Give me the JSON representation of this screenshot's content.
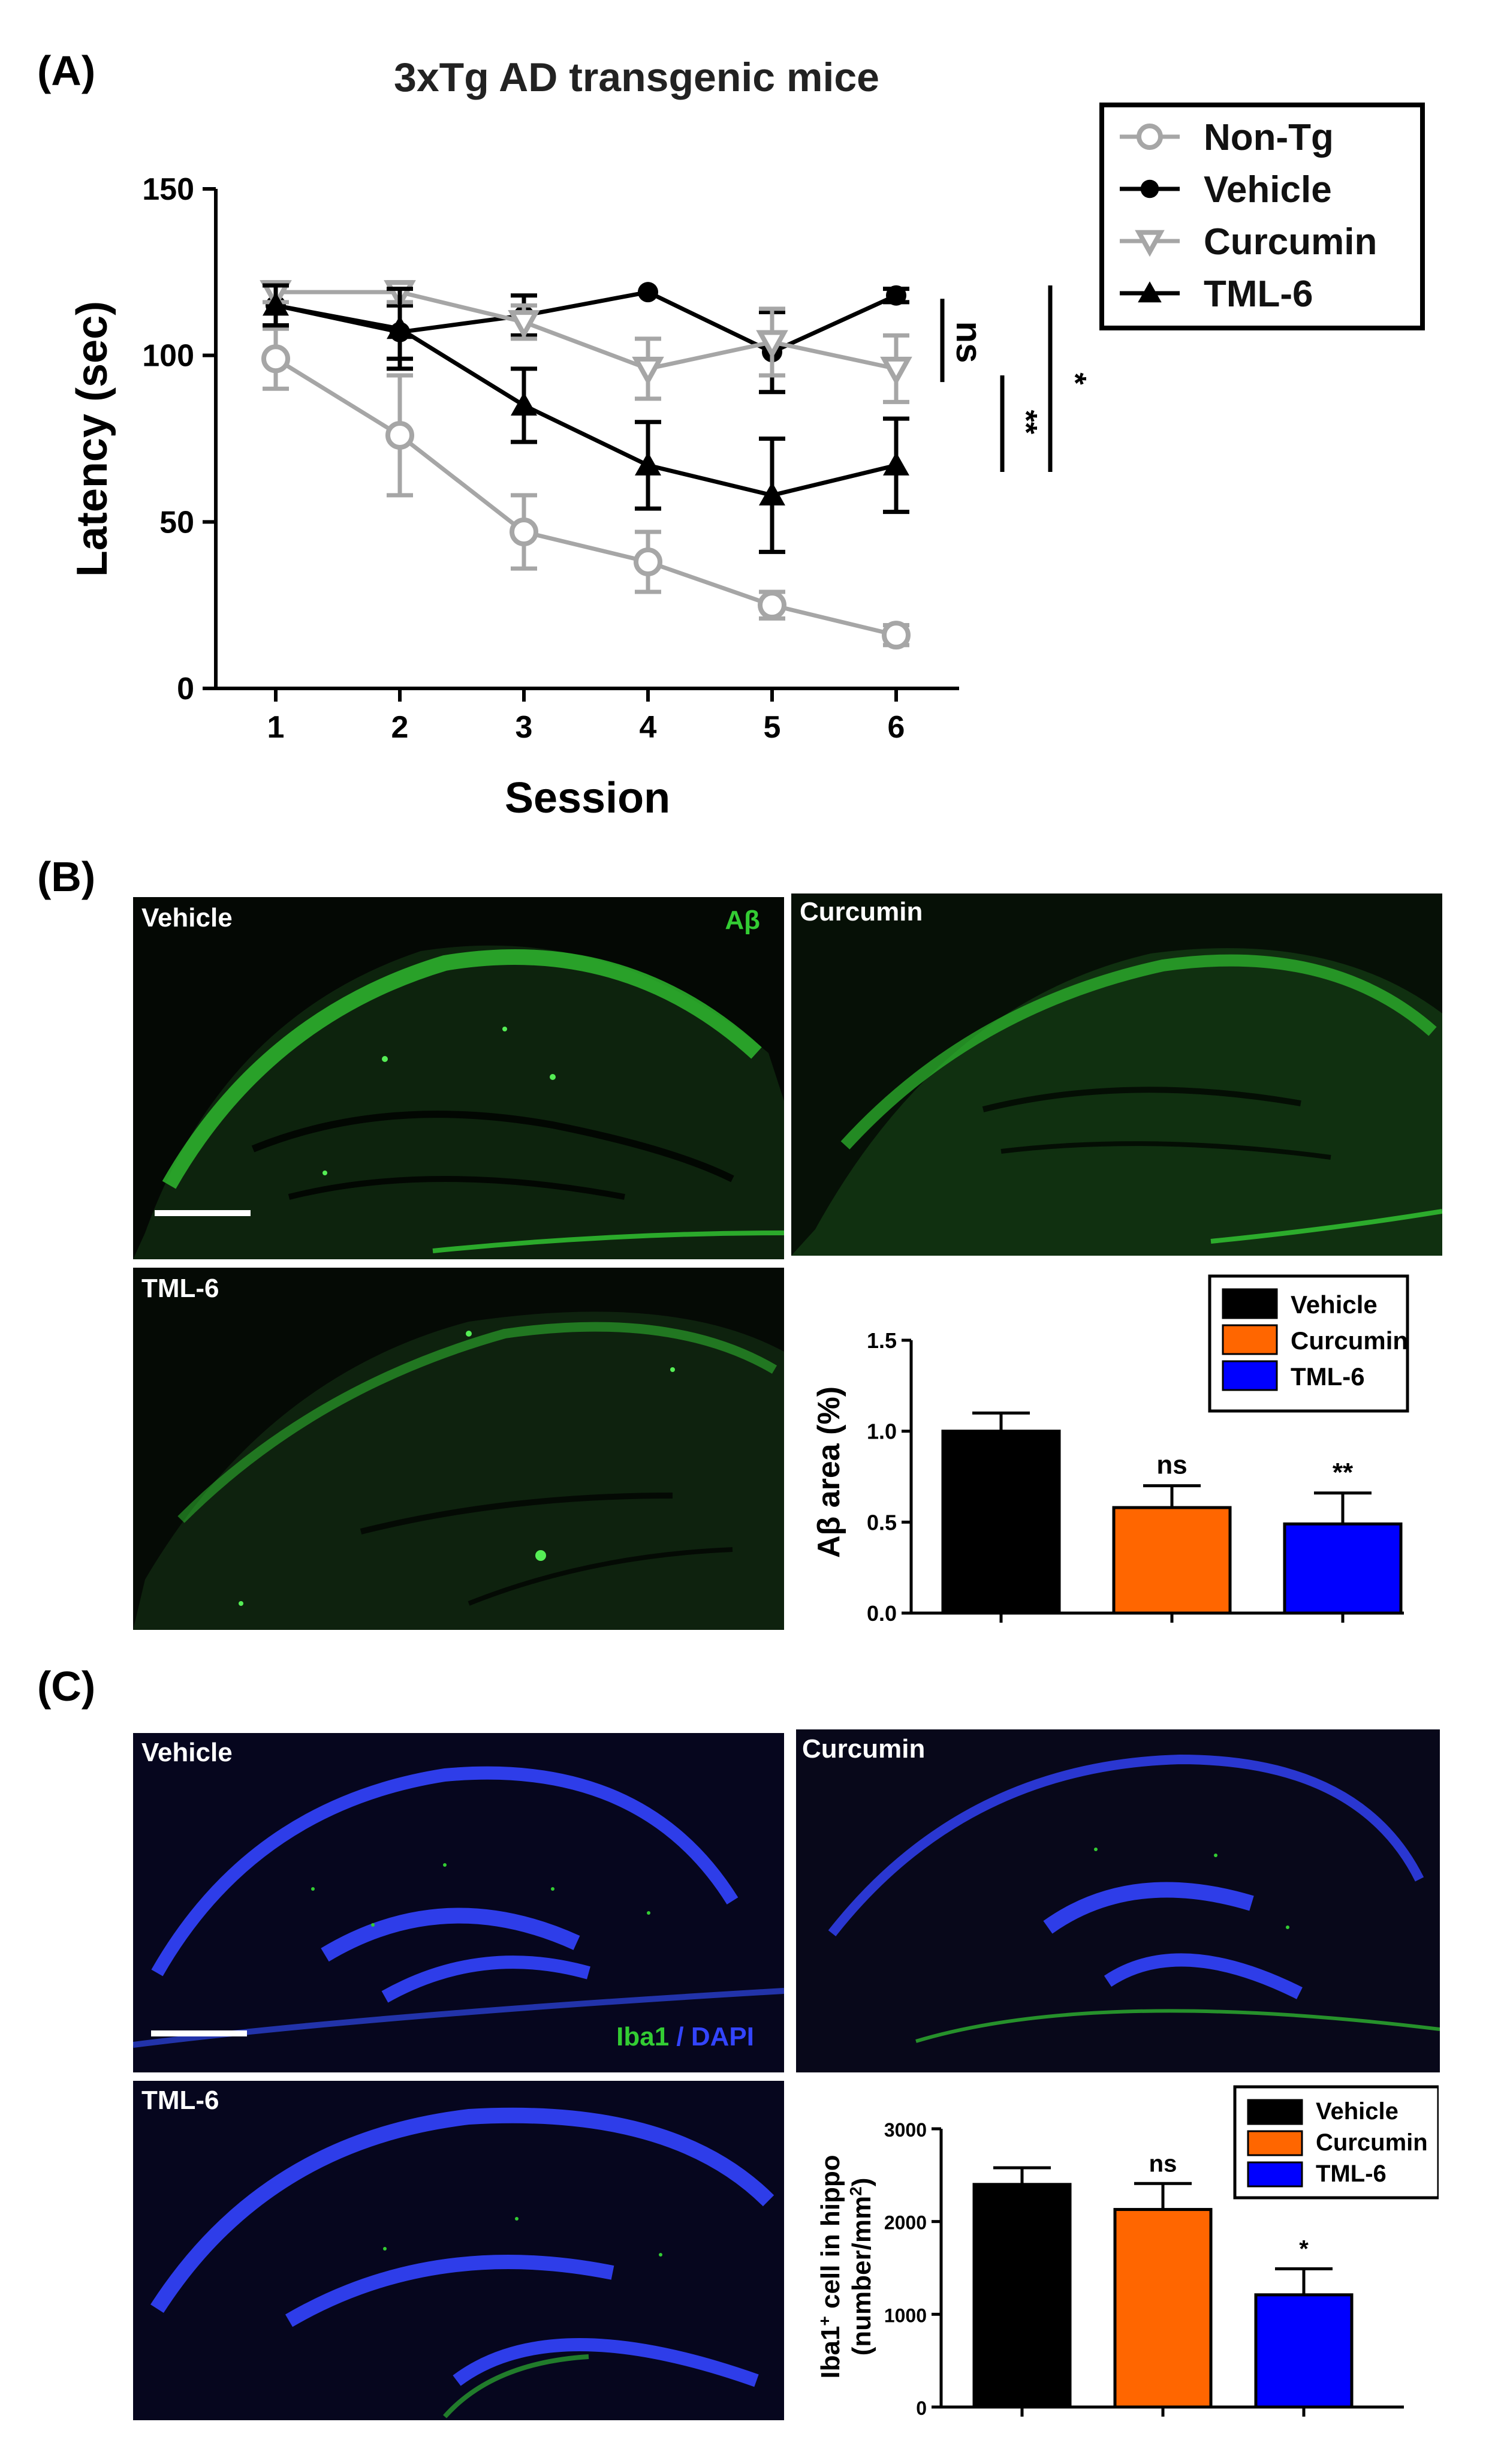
{
  "panel_labels": {
    "a": "(A)",
    "b": "(B)",
    "c": "(C)"
  },
  "colors": {
    "non_tg": "#a6a6a6",
    "vehicle": "#000000",
    "curcumin_gray": "#a6a6a6",
    "tml6": "#000000",
    "bar_vehicle": "#000000",
    "bar_curcumin": "#ff6600",
    "bar_tml6": "#0000ff",
    "green_stain": "#33cc33",
    "dapi_blue": "#3344ff"
  },
  "chart_data": [
    {
      "type": "line",
      "title": "3xTg AD transgenic mice",
      "xlabel": "Session",
      "ylabel": "Latency (sec)",
      "ylim": [
        0,
        150
      ],
      "yticks": [
        0,
        50,
        100,
        150
      ],
      "x": [
        1,
        2,
        3,
        4,
        5,
        6
      ],
      "legend_position": "top-right",
      "series": [
        {
          "name": "Non-Tg",
          "marker": "open-circle",
          "color": "#a6a6a6",
          "values": [
            99,
            76,
            47,
            38,
            25,
            16
          ],
          "errors": [
            9,
            18,
            11,
            9,
            4,
            3
          ]
        },
        {
          "name": "Vehicle",
          "marker": "filled-circle",
          "color": "#000000",
          "values": [
            115,
            107,
            112,
            119,
            101,
            118
          ],
          "errors": [
            6,
            8,
            6,
            0,
            12,
            2
          ]
        },
        {
          "name": "Curcumin",
          "marker": "open-triangle-down",
          "color": "#a6a6a6",
          "values": [
            119,
            119,
            110,
            96,
            104,
            96
          ],
          "errors": [
            3,
            3,
            5,
            9,
            10,
            10
          ]
        },
        {
          "name": "TML-6",
          "marker": "filled-triangle-up",
          "color": "#000000",
          "values": [
            115,
            108,
            85,
            67,
            58,
            67
          ],
          "errors": [
            6,
            12,
            11,
            13,
            17,
            14
          ]
        }
      ],
      "significance": [
        {
          "label": "ns",
          "from": "Vehicle",
          "to": "Curcumin"
        },
        {
          "label": "**",
          "from": "Curcumin",
          "to": "TML-6"
        },
        {
          "label": "*",
          "from": "Vehicle",
          "to": "TML-6"
        }
      ]
    },
    {
      "type": "bar",
      "categories": [
        "Vehicle",
        "Curcumin",
        "TML-6"
      ],
      "values": [
        1.0,
        0.58,
        0.49
      ],
      "errors": [
        0.1,
        0.12,
        0.17
      ],
      "ylabel_prefix": "A",
      "ylabel_greek": "β",
      "ylabel_suffix": " area (%)",
      "ylim": [
        0,
        1.5
      ],
      "yticks": [
        "0.0",
        "0.5",
        "1.0",
        "1.5"
      ],
      "annotations": [
        "",
        "ns",
        "**"
      ],
      "legend_position": "top-right"
    },
    {
      "type": "bar",
      "categories": [
        "Vehicle",
        "Curcumin",
        "TML-6"
      ],
      "values": [
        2400,
        2130,
        1210
      ],
      "errors": [
        180,
        280,
        280
      ],
      "ylabel_line1_base": "Iba1",
      "ylabel_line1_sup": "+",
      "ylabel_line1_rest": " cell in hippo",
      "ylabel_line2_base": "(number/mm",
      "ylabel_line2_sup": "2",
      "ylabel_line2_rest": ")",
      "ylim": [
        0,
        3000
      ],
      "yticks": [
        "0",
        "1000",
        "2000",
        "3000"
      ],
      "annotations": [
        "",
        "ns",
        "*"
      ],
      "legend_position": "top-right"
    }
  ],
  "micrographs_b": {
    "vehicle": "Vehicle",
    "curcumin": "Curcumin",
    "tml6": "TML-6",
    "stain_prefix": "A",
    "stain_greek": "β"
  },
  "micrographs_c": {
    "vehicle": "Vehicle",
    "curcumin": "Curcumin",
    "tml6": "TML-6",
    "stain_green": "Iba1",
    "stain_sep": " / ",
    "stain_blue": "DAPI"
  }
}
